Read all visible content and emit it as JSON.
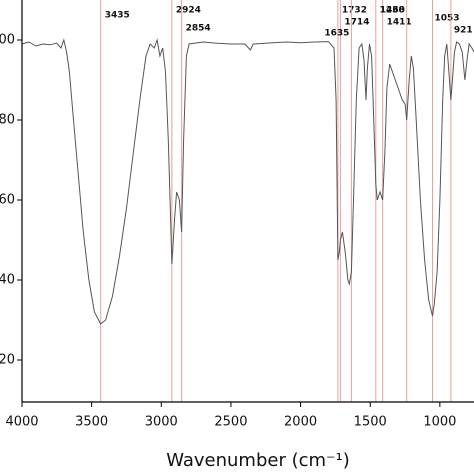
{
  "chart_data": {
    "type": "line",
    "xlabel": "Wavenumber (cm⁻¹)",
    "xlim": [
      4000,
      755
    ],
    "ylim": [
      9.5,
      110
    ],
    "xticks": [
      4000,
      3500,
      3000,
      2500,
      2000,
      1500,
      1000
    ],
    "yticks": [
      20,
      40,
      60,
      80,
      100
    ],
    "peaks": [
      3435,
      2924,
      2854,
      1732,
      1714,
      1635,
      1460,
      1411,
      1238,
      1053,
      921
    ],
    "peak_color": "#e8a0a0",
    "series": [
      {
        "color": "#555555",
        "x": [
          4000,
          3950,
          3900,
          3850,
          3800,
          3750,
          3720,
          3700,
          3680,
          3660,
          3630,
          3600,
          3560,
          3520,
          3480,
          3435,
          3400,
          3350,
          3300,
          3250,
          3200,
          3150,
          3110,
          3080,
          3050,
          3030,
          3010,
          2990,
          2970,
          2950,
          2924,
          2905,
          2890,
          2870,
          2854,
          2840,
          2820,
          2800,
          2700,
          2600,
          2500,
          2400,
          2360,
          2340,
          2200,
          2100,
          2000,
          1900,
          1800,
          1760,
          1745,
          1732,
          1722,
          1714,
          1700,
          1680,
          1660,
          1650,
          1635,
          1620,
          1600,
          1580,
          1560,
          1545,
          1530,
          1520,
          1505,
          1490,
          1470,
          1460,
          1450,
          1430,
          1411,
          1395,
          1380,
          1360,
          1330,
          1300,
          1270,
          1250,
          1238,
          1220,
          1205,
          1190,
          1170,
          1140,
          1110,
          1080,
          1060,
          1053,
          1040,
          1020,
          1000,
          980,
          965,
          950,
          935,
          921,
          910,
          895,
          880,
          860,
          840,
          820,
          805,
          790,
          770,
          755
        ],
        "values": [
          99,
          99.5,
          98.5,
          99,
          98.8,
          99.2,
          98,
          100,
          97,
          92,
          80,
          68,
          52,
          40,
          32,
          29,
          30,
          36,
          46,
          58,
          72,
          86,
          96,
          99,
          98,
          100,
          96,
          98,
          92,
          75,
          44,
          55,
          62,
          60,
          52,
          75,
          96,
          99,
          99.5,
          99.2,
          99,
          99,
          97.5,
          99,
          99.3,
          99.5,
          99.3,
          99.5,
          99.6,
          98,
          85,
          45,
          47,
          50,
          52,
          47,
          40,
          39,
          42,
          60,
          85,
          98,
          99,
          95,
          85,
          93,
          99,
          96,
          75,
          64,
          60,
          62,
          60,
          72,
          88,
          94,
          91,
          88,
          85,
          84,
          80,
          90,
          96,
          93,
          80,
          60,
          45,
          35,
          32,
          31,
          34,
          42,
          60,
          85,
          96,
          99,
          92,
          85,
          90,
          97,
          99.5,
          99,
          97,
          90,
          95,
          99,
          98,
          97
        ]
      }
    ]
  }
}
